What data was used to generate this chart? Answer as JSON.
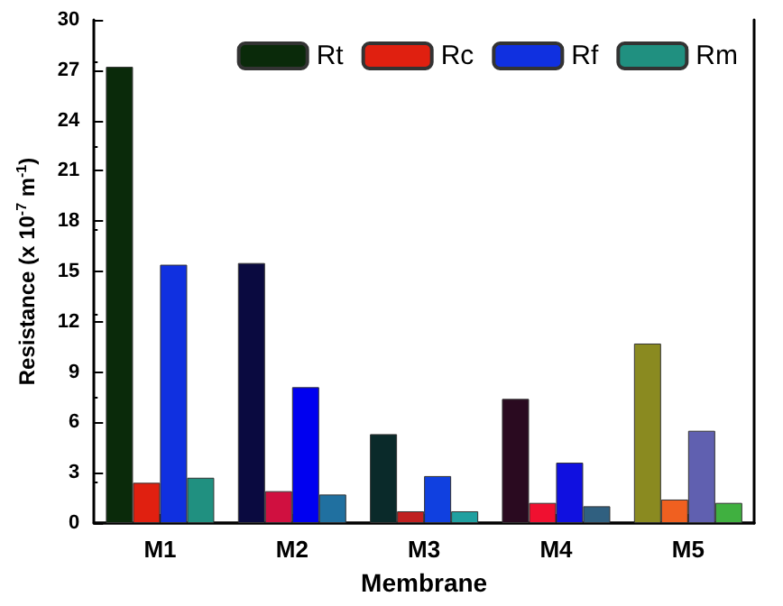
{
  "chart_data": {
    "type": "bar",
    "xlabel": "Membrane",
    "ylabel": "Resistance (x 10$^{-7}$ m$^{-1}$)",
    "categories": [
      "M1",
      "M2",
      "M3",
      "M4",
      "M5"
    ],
    "series": [
      {
        "name": "Rt",
        "color": "#0a2a0a",
        "colors": [
          "#0a2a0a",
          "#0a0a40",
          "#0a2a2a",
          "#2a0a20",
          "#8a8a20"
        ],
        "values": [
          27.2,
          15.5,
          5.3,
          7.4,
          10.7
        ]
      },
      {
        "name": "Rc",
        "color": "#e02010",
        "colors": [
          "#e02010",
          "#d01040",
          "#c02020",
          "#f01030",
          "#f06020"
        ],
        "values": [
          2.4,
          1.9,
          0.7,
          1.2,
          1.4
        ]
      },
      {
        "name": "Rf",
        "color": "#1030e0",
        "colors": [
          "#1030e0",
          "#0000f0",
          "#1040e0",
          "#1010e0",
          "#6060b0"
        ],
        "values": [
          15.4,
          8.1,
          2.8,
          3.6,
          5.5
        ]
      },
      {
        "name": "Rm",
        "color": "#209080",
        "colors": [
          "#209080",
          "#2070a0",
          "#20a0a0",
          "#306080",
          "#40b040"
        ],
        "values": [
          2.7,
          1.7,
          0.7,
          1.0,
          1.2
        ]
      }
    ],
    "ylim": [
      0,
      30
    ],
    "yticks": [
      0,
      3,
      6,
      9,
      12,
      15,
      18,
      21,
      24,
      27,
      30
    ],
    "grid": false,
    "legend": "top right"
  }
}
